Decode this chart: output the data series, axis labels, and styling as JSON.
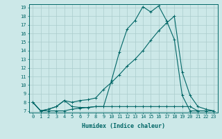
{
  "title": "",
  "xlabel": "Humidex (Indice chaleur)",
  "bg_color": "#cce8e8",
  "line_color": "#006666",
  "grid_color": "#aacccc",
  "xlim": [
    -0.5,
    23.5
  ],
  "ylim": [
    6.8,
    19.4
  ],
  "yticks": [
    7,
    8,
    9,
    10,
    11,
    12,
    13,
    14,
    15,
    16,
    17,
    18,
    19
  ],
  "xticks": [
    0,
    1,
    2,
    3,
    4,
    5,
    6,
    7,
    8,
    9,
    10,
    11,
    12,
    13,
    14,
    15,
    16,
    17,
    18,
    19,
    20,
    21,
    22,
    23
  ],
  "line1_x": [
    0,
    1,
    2,
    3,
    4,
    5,
    6,
    7,
    8,
    9,
    10,
    11,
    12,
    13,
    14,
    15,
    16,
    17,
    18,
    19,
    20,
    21,
    22,
    23
  ],
  "line1_y": [
    8.0,
    7.0,
    7.2,
    7.5,
    8.2,
    7.5,
    7.4,
    7.4,
    7.5,
    7.5,
    10.5,
    13.8,
    16.5,
    17.5,
    19.1,
    18.5,
    19.2,
    17.5,
    15.3,
    8.8,
    7.0,
    7.0,
    7.0,
    7.0
  ],
  "line2_x": [
    0,
    1,
    2,
    3,
    4,
    5,
    6,
    7,
    8,
    9,
    10,
    11,
    12,
    13,
    14,
    15,
    16,
    17,
    18,
    19,
    20,
    21,
    22,
    23
  ],
  "line2_y": [
    8.0,
    7.0,
    7.2,
    7.5,
    8.2,
    8.0,
    8.2,
    8.3,
    8.5,
    9.5,
    10.3,
    11.2,
    12.2,
    13.0,
    14.0,
    15.2,
    16.3,
    17.2,
    18.0,
    11.5,
    8.8,
    7.5,
    7.2,
    7.0
  ],
  "line3_x": [
    0,
    1,
    2,
    3,
    4,
    5,
    6,
    7,
    8,
    9,
    10,
    11,
    12,
    13,
    14,
    15,
    16,
    17,
    18,
    19,
    20,
    21,
    22,
    23
  ],
  "line3_y": [
    8.0,
    7.0,
    7.0,
    7.0,
    7.0,
    7.2,
    7.3,
    7.4,
    7.5,
    7.5,
    7.5,
    7.5,
    7.5,
    7.5,
    7.5,
    7.5,
    7.5,
    7.5,
    7.5,
    7.5,
    7.5,
    7.0,
    7.0,
    7.0
  ],
  "marker": "+",
  "markersize": 2.5,
  "linewidth": 0.8,
  "xlabel_fontsize": 6,
  "tick_fontsize": 5
}
